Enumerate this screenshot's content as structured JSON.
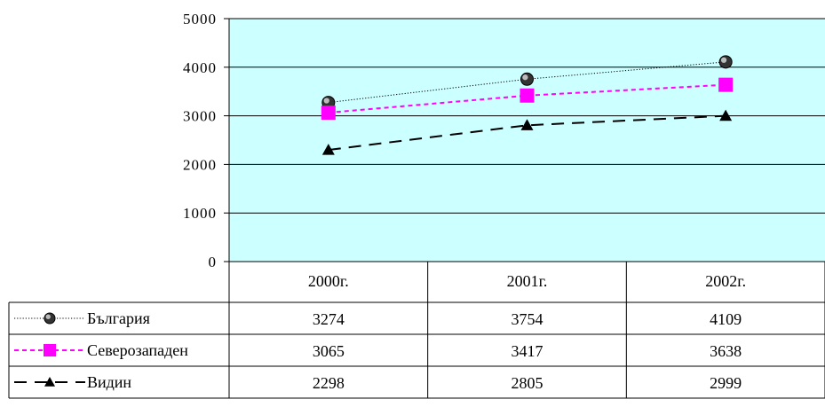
{
  "chart_data": {
    "type": "line",
    "categories": [
      "2000г.",
      "2001г.",
      "2002г."
    ],
    "series": [
      {
        "name": "България",
        "values": [
          3274,
          3754,
          4109
        ],
        "color": "#000000",
        "marker": "circle",
        "line_style": "dotted"
      },
      {
        "name": "Северозападен",
        "values": [
          3065,
          3417,
          3638
        ],
        "color": "#ff00ff",
        "marker": "square",
        "line_style": "dashed"
      },
      {
        "name": "Видин",
        "values": [
          2298,
          2805,
          2999
        ],
        "color": "#000000",
        "marker": "triangle",
        "line_style": "long-dash"
      }
    ],
    "y_ticks": [
      "0",
      "1000",
      "2000",
      "3000",
      "4000",
      "5000"
    ],
    "ylim": [
      0,
      5000
    ],
    "grid": true,
    "plot_background": "#ccffff",
    "legend": "data-table"
  }
}
